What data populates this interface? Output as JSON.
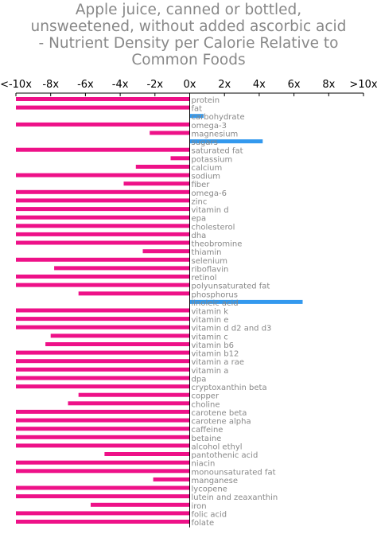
{
  "chart_data": {
    "type": "bar",
    "orientation": "horizontal",
    "title_lines": [
      "Apple juice, canned or bottled,",
      "unsweetened, without added ascorbic acid",
      "- Nutrient Density per Calorie Relative to",
      "Common Foods"
    ],
    "xlim": [
      -10,
      10
    ],
    "x_tick_labels": [
      "<-10x",
      "-8x",
      "-6x",
      "-4x",
      "-2x",
      "0x",
      "2x",
      "4x",
      "6x",
      "8x",
      ">10x"
    ],
    "colors": {
      "negative": "#ee1188",
      "positive": "#3399ee"
    },
    "categories": [
      "protein",
      "fat",
      "carbohydrate",
      "omega-3",
      "magnesium",
      "sugars",
      "saturated fat",
      "potassium",
      "calcium",
      "sodium",
      "fiber",
      "omega-6",
      "zinc",
      "vitamin d",
      "epa",
      "cholesterol",
      "dha",
      "theobromine",
      "thiamin",
      "selenium",
      "riboflavin",
      "retinol",
      "polyunsaturated fat",
      "phosphorus",
      "linoleic acid",
      "vitamin k",
      "vitamin e",
      "vitamin d d2 and d3",
      "vitamin c",
      "vitamin b6",
      "vitamin b12",
      "vitamin a rae",
      "vitamin a",
      "dpa",
      "cryptoxanthin beta",
      "copper",
      "choline",
      "carotene beta",
      "carotene alpha",
      "caffeine",
      "betaine",
      "alcohol ethyl",
      "pantothenic acid",
      "niacin",
      "monounsaturated fat",
      "manganese",
      "lycopene",
      "lutein and zeaxanthin",
      "iron",
      "folic acid",
      "folate"
    ],
    "values": [
      -10,
      -10,
      0.8,
      -10,
      -2.3,
      4.2,
      -10,
      -1.1,
      -3.1,
      -10,
      -3.8,
      -10,
      -10,
      -10,
      -10,
      -10,
      -10,
      -10,
      -2.7,
      -10,
      -7.8,
      -10,
      -10,
      -6.4,
      6.5,
      -10,
      -10,
      -10,
      -8.0,
      -8.3,
      -10,
      -10,
      -10,
      -10,
      -10,
      -6.4,
      -7.0,
      -10,
      -10,
      -10,
      -10,
      -10,
      -4.9,
      -10,
      -10,
      -2.1,
      -10,
      -10,
      -5.7,
      -10,
      -10
    ]
  }
}
